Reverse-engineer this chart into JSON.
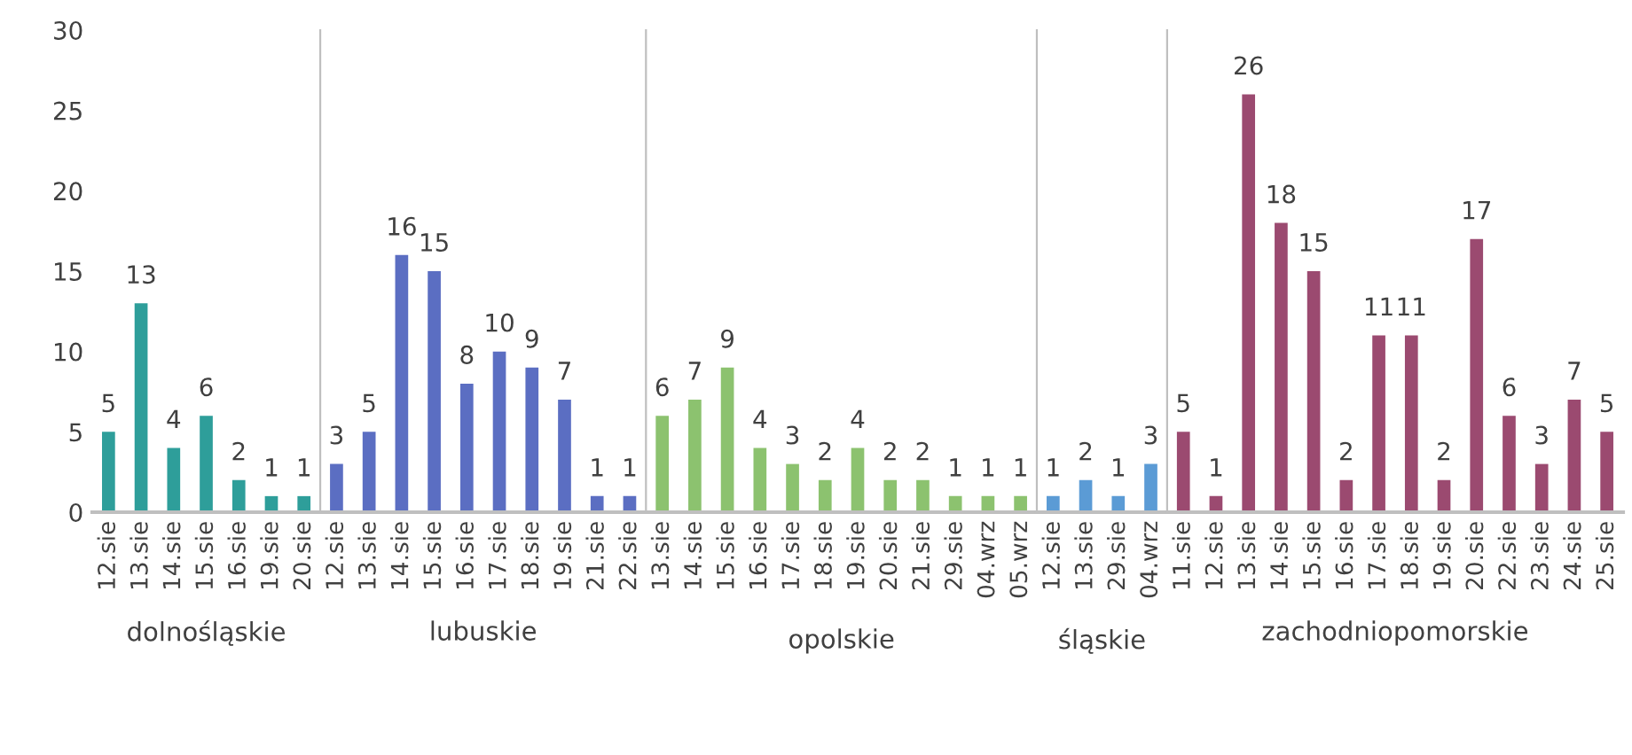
{
  "chart_data": [
    {
      "type": "bar",
      "xlabel": "dolnośląskie",
      "categories": [
        "12.sie",
        "13.sie",
        "14.sie",
        "15.sie",
        "16.sie",
        "19.sie",
        "20.sie"
      ],
      "values": [
        5,
        13,
        4,
        6,
        2,
        1,
        1
      ],
      "color": "#2e9e9a",
      "ylim": [
        0,
        30
      ],
      "yticks": [
        0,
        5,
        10,
        15,
        20,
        25,
        30
      ],
      "data_labels": true,
      "grid": false
    },
    {
      "type": "bar",
      "xlabel": "lubuskie",
      "categories": [
        "12.sie",
        "13.sie",
        "14.sie",
        "15.sie",
        "16.sie",
        "17.sie",
        "18.sie",
        "19.sie",
        "21.sie",
        "22.sie"
      ],
      "values": [
        3,
        5,
        16,
        15,
        8,
        10,
        9,
        7,
        1,
        1
      ],
      "color": "#5b6ec2",
      "ylim": [
        0,
        30
      ],
      "data_labels": true,
      "grid": false,
      "tick_labels": "x"
    },
    {
      "type": "bar",
      "xlabel": "opolskie",
      "categories": [
        "13.sie",
        "14.sie",
        "15.sie",
        "16.sie",
        "17.sie",
        "18.sie",
        "19.sie",
        "20.sie",
        "21.sie",
        "29.sie",
        "04.wrz",
        "05.wrz"
      ],
      "values": [
        6,
        7,
        9,
        4,
        3,
        2,
        4,
        2,
        2,
        1,
        1,
        1
      ],
      "color": "#8cc26f",
      "ylim": [
        0,
        30
      ],
      "data_labels": true,
      "grid": false,
      "tick_labels": "x"
    },
    {
      "type": "bar",
      "xlabel": "śląskie",
      "categories": [
        "12.sie",
        "13.sie",
        "29.sie",
        "04.wrz"
      ],
      "values": [
        1,
        2,
        1,
        3
      ],
      "color": "#5b9bd5",
      "ylim": [
        0,
        30
      ],
      "data_labels": true,
      "grid": false,
      "tick_labels": "x"
    },
    {
      "type": "bar",
      "xlabel": "zachodniopomorskie",
      "categories": [
        "11.sie",
        "12.sie",
        "13.sie",
        "14.sie",
        "15.sie",
        "16.sie",
        "17.sie",
        "18.sie",
        "19.sie",
        "20.sie",
        "22.sie",
        "23.sie",
        "24.sie",
        "25.sie"
      ],
      "values": [
        5,
        1,
        26,
        18,
        15,
        2,
        11,
        11,
        2,
        17,
        6,
        3,
        7,
        5
      ],
      "color": "#9b4a70",
      "ylim": [
        0,
        30
      ],
      "data_labels": true,
      "grid": false,
      "tick_labels": "x"
    }
  ]
}
